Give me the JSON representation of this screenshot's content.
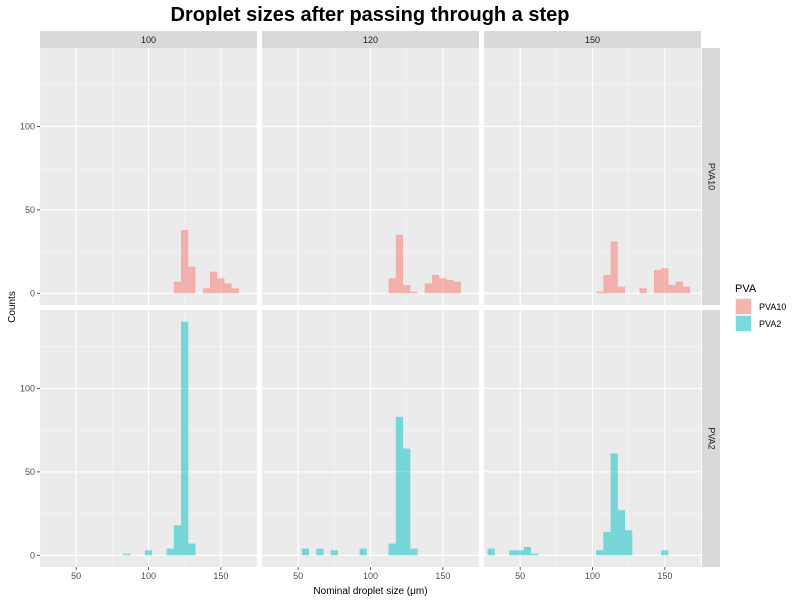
{
  "chart_data": {
    "type": "bar",
    "title": "Droplet sizes after passing through a step",
    "xlabel": "Nominal droplet size (μm)",
    "ylabel": "Counts",
    "xlim": [
      25,
      175
    ],
    "ylim": [
      -7,
      147
    ],
    "x_ticks": [
      50,
      100,
      150
    ],
    "y_ticks": [
      0,
      50,
      100
    ],
    "grid": true,
    "legend": {
      "title": "PVA",
      "position": "right",
      "entries": [
        {
          "label": "PVA10",
          "color": "#F8766D"
        },
        {
          "label": "PVA2",
          "color": "#00BFC4"
        }
      ]
    },
    "bin_width": 5,
    "facet_columns": [
      "100",
      "120",
      "150"
    ],
    "facet_rows": [
      "PVA10",
      "PVA2"
    ],
    "panels": [
      {
        "column": "100",
        "row": "PVA10",
        "series": "PVA10",
        "x": [
          120,
          125,
          130,
          140,
          145,
          150,
          155,
          160
        ],
        "values": [
          7,
          38,
          16,
          3,
          13,
          9,
          6,
          3
        ]
      },
      {
        "column": "120",
        "row": "PVA10",
        "series": "PVA10",
        "x": [
          115,
          120,
          125,
          130,
          140,
          145,
          150,
          155,
          160
        ],
        "values": [
          9,
          35,
          5,
          1,
          6,
          11,
          9,
          8,
          7
        ]
      },
      {
        "column": "150",
        "row": "PVA10",
        "series": "PVA10",
        "x": [
          105,
          110,
          115,
          120,
          135,
          145,
          150,
          155,
          160,
          165
        ],
        "values": [
          1,
          11,
          31,
          4,
          3,
          14,
          15,
          5,
          7,
          4
        ]
      },
      {
        "column": "100",
        "row": "PVA2",
        "series": "PVA2",
        "x": [
          85,
          100,
          115,
          120,
          125,
          130
        ],
        "values": [
          1,
          3,
          4,
          18,
          140,
          7
        ]
      },
      {
        "column": "120",
        "row": "PVA2",
        "series": "PVA2",
        "x": [
          55,
          65,
          75,
          95,
          115,
          120,
          125,
          130
        ],
        "values": [
          4,
          4,
          3,
          4,
          7,
          83,
          64,
          4
        ]
      },
      {
        "column": "150",
        "row": "PVA2",
        "series": "PVA2",
        "x": [
          30,
          45,
          50,
          55,
          60,
          105,
          110,
          115,
          120,
          125,
          150
        ],
        "values": [
          4,
          3,
          3,
          5,
          1,
          3,
          14,
          61,
          27,
          15,
          3
        ]
      }
    ]
  }
}
